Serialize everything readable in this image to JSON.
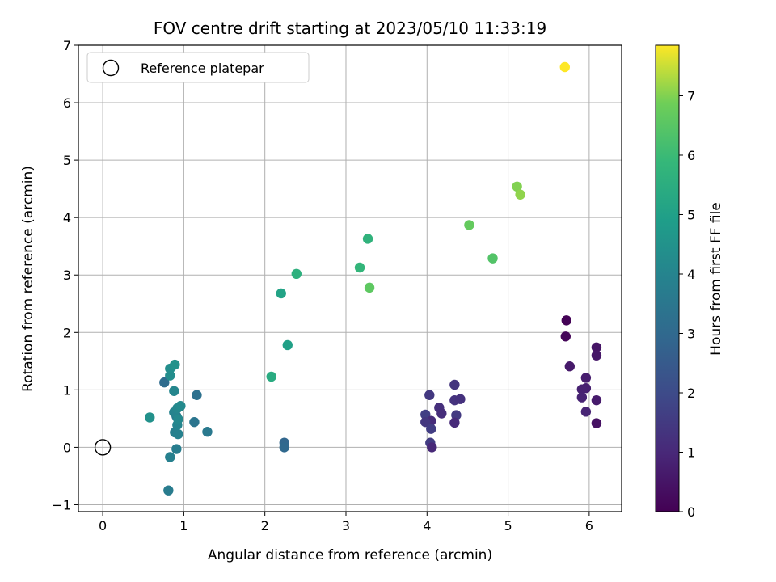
{
  "chart_data": {
    "type": "scatter",
    "title": "FOV centre drift starting at 2023/05/10 11:33:19",
    "xlabel": "Angular distance from reference (arcmin)",
    "ylabel": "Rotation from reference (arcmin)",
    "xlim": [
      -0.3,
      6.4
    ],
    "ylim": [
      -1.12,
      7
    ],
    "xticks": [
      "0",
      "1",
      "2",
      "3",
      "4",
      "5",
      "6"
    ],
    "yticks": [
      "−1",
      "0",
      "1",
      "2",
      "3",
      "4",
      "5",
      "6",
      "7"
    ],
    "grid": true,
    "legend": {
      "placement": "top-left",
      "entries": [
        "Reference platepar"
      ]
    },
    "reference_point": {
      "x": 0,
      "y": 0,
      "name": "Reference platepar"
    },
    "colorbar": {
      "label": "Hours from first FF file",
      "range": [
        0,
        7.85
      ],
      "ticks": [
        "0",
        "1",
        "2",
        "3",
        "4",
        "5",
        "6",
        "7"
      ],
      "colormap": "viridis"
    },
    "points": [
      {
        "x": 5.72,
        "y": 2.21,
        "h": 0.05
      },
      {
        "x": 5.71,
        "y": 1.93,
        "h": 0.1
      },
      {
        "x": 6.09,
        "y": 1.74,
        "h": 0.5
      },
      {
        "x": 6.09,
        "y": 1.6,
        "h": 0.55
      },
      {
        "x": 5.76,
        "y": 1.41,
        "h": 0.6
      },
      {
        "x": 5.96,
        "y": 1.21,
        "h": 0.7
      },
      {
        "x": 5.96,
        "y": 1.03,
        "h": 0.75
      },
      {
        "x": 5.91,
        "y": 1.01,
        "h": 0.8
      },
      {
        "x": 5.91,
        "y": 0.87,
        "h": 0.85
      },
      {
        "x": 6.09,
        "y": 0.82,
        "h": 0.65
      },
      {
        "x": 5.96,
        "y": 0.62,
        "h": 0.9
      },
      {
        "x": 6.09,
        "y": 0.42,
        "h": 0.4
      },
      {
        "x": 4.03,
        "y": 0.91,
        "h": 1.45
      },
      {
        "x": 4.34,
        "y": 1.09,
        "h": 1.35
      },
      {
        "x": 4.34,
        "y": 0.82,
        "h": 1.3
      },
      {
        "x": 4.41,
        "y": 0.84,
        "h": 1.25
      },
      {
        "x": 4.15,
        "y": 0.69,
        "h": 1.2
      },
      {
        "x": 4.18,
        "y": 0.59,
        "h": 1.15
      },
      {
        "x": 3.98,
        "y": 0.57,
        "h": 1.65
      },
      {
        "x": 4.36,
        "y": 0.56,
        "h": 1.5
      },
      {
        "x": 4.05,
        "y": 0.46,
        "h": 1.1
      },
      {
        "x": 3.98,
        "y": 0.44,
        "h": 1.4
      },
      {
        "x": 4.34,
        "y": 0.43,
        "h": 1.05
      },
      {
        "x": 4.05,
        "y": 0.32,
        "h": 1.6
      },
      {
        "x": 4.04,
        "y": 0.08,
        "h": 1.55
      },
      {
        "x": 4.06,
        "y": 0.0,
        "h": 1.0
      },
      {
        "x": 2.24,
        "y": 0.08,
        "h": 2.9
      },
      {
        "x": 2.24,
        "y": 0.0,
        "h": 3.0
      },
      {
        "x": 1.16,
        "y": 0.91,
        "h": 3.3
      },
      {
        "x": 0.76,
        "y": 1.13,
        "h": 3.1
      },
      {
        "x": 1.13,
        "y": 0.44,
        "h": 3.45
      },
      {
        "x": 1.29,
        "y": 0.27,
        "h": 3.6
      },
      {
        "x": 0.91,
        "y": 0.54,
        "h": 3.55
      },
      {
        "x": 0.91,
        "y": -0.03,
        "h": 3.75
      },
      {
        "x": 0.89,
        "y": 0.26,
        "h": 3.8
      },
      {
        "x": 0.93,
        "y": 0.23,
        "h": 3.9
      },
      {
        "x": 0.83,
        "y": -0.17,
        "h": 3.85
      },
      {
        "x": 0.88,
        "y": 0.61,
        "h": 3.95
      },
      {
        "x": 0.92,
        "y": 0.39,
        "h": 4.0
      },
      {
        "x": 0.88,
        "y": 0.98,
        "h": 4.05
      },
      {
        "x": 0.92,
        "y": 0.68,
        "h": 4.1
      },
      {
        "x": 0.96,
        "y": 0.72,
        "h": 4.2
      },
      {
        "x": 0.93,
        "y": 0.49,
        "h": 4.15
      },
      {
        "x": 0.81,
        "y": -0.75,
        "h": 3.7
      },
      {
        "x": 0.83,
        "y": 1.25,
        "h": 4.3
      },
      {
        "x": 0.83,
        "y": 1.37,
        "h": 4.35
      },
      {
        "x": 0.89,
        "y": 1.44,
        "h": 4.5
      },
      {
        "x": 0.58,
        "y": 0.52,
        "h": 4.45
      },
      {
        "x": 2.08,
        "y": 1.23,
        "h": 5.4
      },
      {
        "x": 2.28,
        "y": 1.78,
        "h": 5.0
      },
      {
        "x": 2.2,
        "y": 2.68,
        "h": 5.1
      },
      {
        "x": 2.39,
        "y": 3.02,
        "h": 5.6
      },
      {
        "x": 3.17,
        "y": 3.13,
        "h": 5.8
      },
      {
        "x": 3.27,
        "y": 3.63,
        "h": 5.7
      },
      {
        "x": 3.29,
        "y": 2.78,
        "h": 6.6
      },
      {
        "x": 4.52,
        "y": 3.87,
        "h": 6.7
      },
      {
        "x": 4.81,
        "y": 3.29,
        "h": 6.4
      },
      {
        "x": 5.11,
        "y": 4.54,
        "h": 7.0
      },
      {
        "x": 5.15,
        "y": 4.4,
        "h": 7.1
      },
      {
        "x": 5.7,
        "y": 6.62,
        "h": 7.85
      }
    ]
  }
}
